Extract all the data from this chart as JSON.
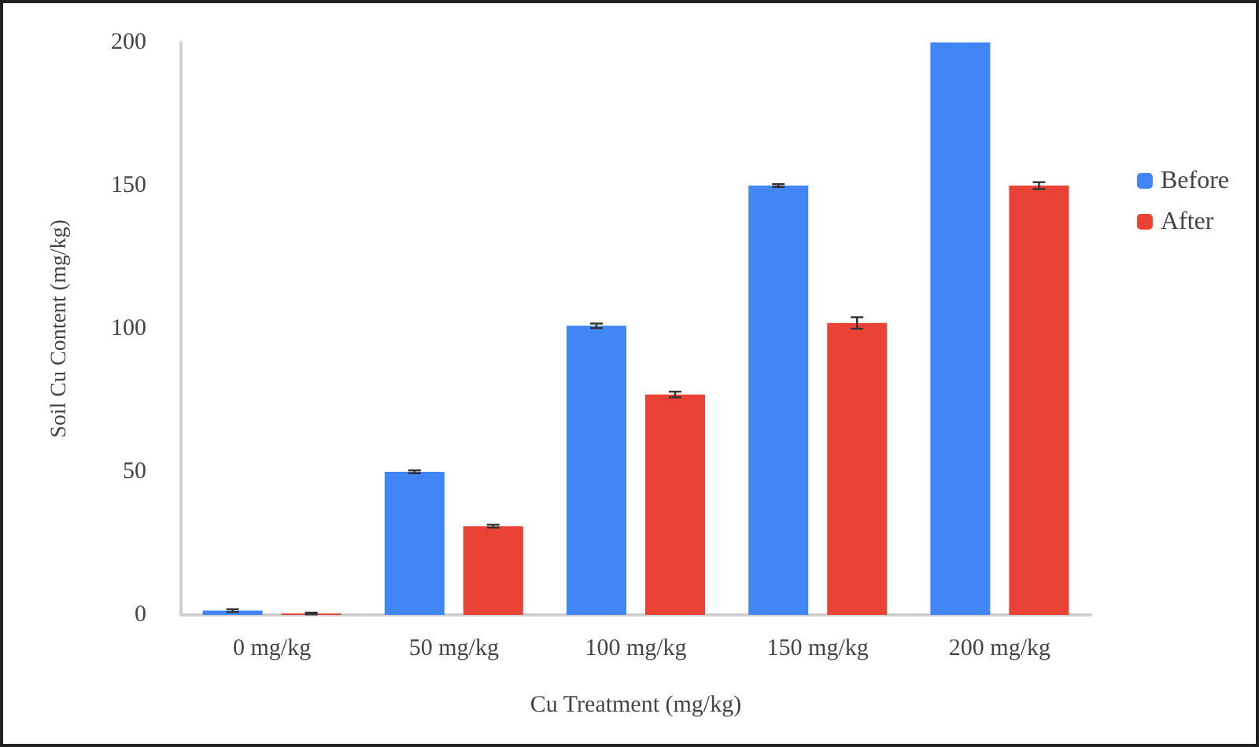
{
  "chart_data": {
    "type": "bar",
    "xlabel": "Cu Treatment (mg/kg)",
    "ylabel": "Soil Cu Content (mg/kg)",
    "categories": [
      "0 mg/kg",
      "50 mg/kg",
      "100 mg/kg",
      "150 mg/kg",
      "200 mg/kg"
    ],
    "series": [
      {
        "name": "Before",
        "color": "#4285f4",
        "values": [
          1.5,
          50,
          101,
          150,
          200
        ],
        "errors": [
          0.5,
          0.5,
          0.8,
          0.5,
          null
        ]
      },
      {
        "name": "After",
        "color": "#ea4335",
        "values": [
          0.5,
          31,
          77,
          102,
          150
        ],
        "errors": [
          0.3,
          0.5,
          1,
          2,
          1.2
        ]
      }
    ],
    "ylim": [
      0,
      200
    ],
    "yticks": [
      0,
      50,
      100,
      150,
      200
    ],
    "grid": false,
    "legend": "right"
  }
}
